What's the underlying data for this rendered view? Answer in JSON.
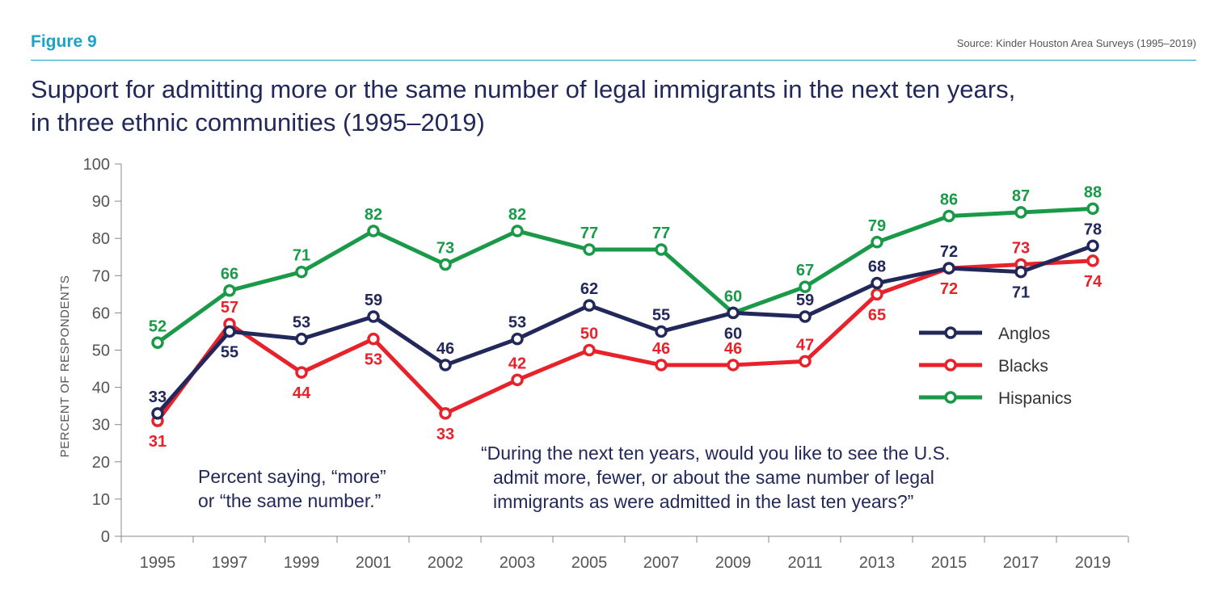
{
  "header": {
    "figure_label": "Figure 9",
    "source": "Source: Kinder Houston Area Surveys (1995–2019)",
    "title_line1": "Support for admitting more or the same number of legal immigrants in the next ten years,",
    "title_line2": "in three ethnic communities (1995–2019)"
  },
  "notes": {
    "left_line1": "Percent saying, “more”",
    "left_line2": "or “the same number.”",
    "right_line1": "“During the next ten years, would you like to see the U.S.",
    "right_line2": "admit more, fewer, or about the same number of legal",
    "right_line3": "immigrants as were admitted in the last ten years?”"
  },
  "chart_data": {
    "type": "line",
    "title": "Support for admitting more or the same number of legal immigrants in the next ten years, in three ethnic communities (1995–2019)",
    "ylabel": "PERCENT OF RESPONDENTS",
    "xlabel": "",
    "ylim": [
      0,
      100
    ],
    "yticks": [
      0,
      10,
      20,
      30,
      40,
      50,
      60,
      70,
      80,
      90,
      100
    ],
    "grid": false,
    "legend_position": "right",
    "categories": [
      "1995",
      "1997",
      "1999",
      "2001",
      "2002",
      "2003",
      "2005",
      "2007",
      "2009",
      "2011",
      "2013",
      "2015",
      "2017",
      "2019"
    ],
    "series": [
      {
        "name": "Anglos",
        "color": "#22295a",
        "values": [
          33,
          55,
          53,
          59,
          46,
          53,
          62,
          55,
          60,
          59,
          68,
          72,
          71,
          78
        ]
      },
      {
        "name": "Blacks",
        "color": "#e8222a",
        "values": [
          31,
          57,
          44,
          53,
          33,
          42,
          50,
          46,
          46,
          47,
          65,
          72,
          73,
          74
        ]
      },
      {
        "name": "Hispanics",
        "color": "#1a9a48",
        "values": [
          52,
          66,
          71,
          82,
          73,
          82,
          77,
          77,
          60,
          67,
          79,
          86,
          87,
          88
        ]
      }
    ]
  }
}
